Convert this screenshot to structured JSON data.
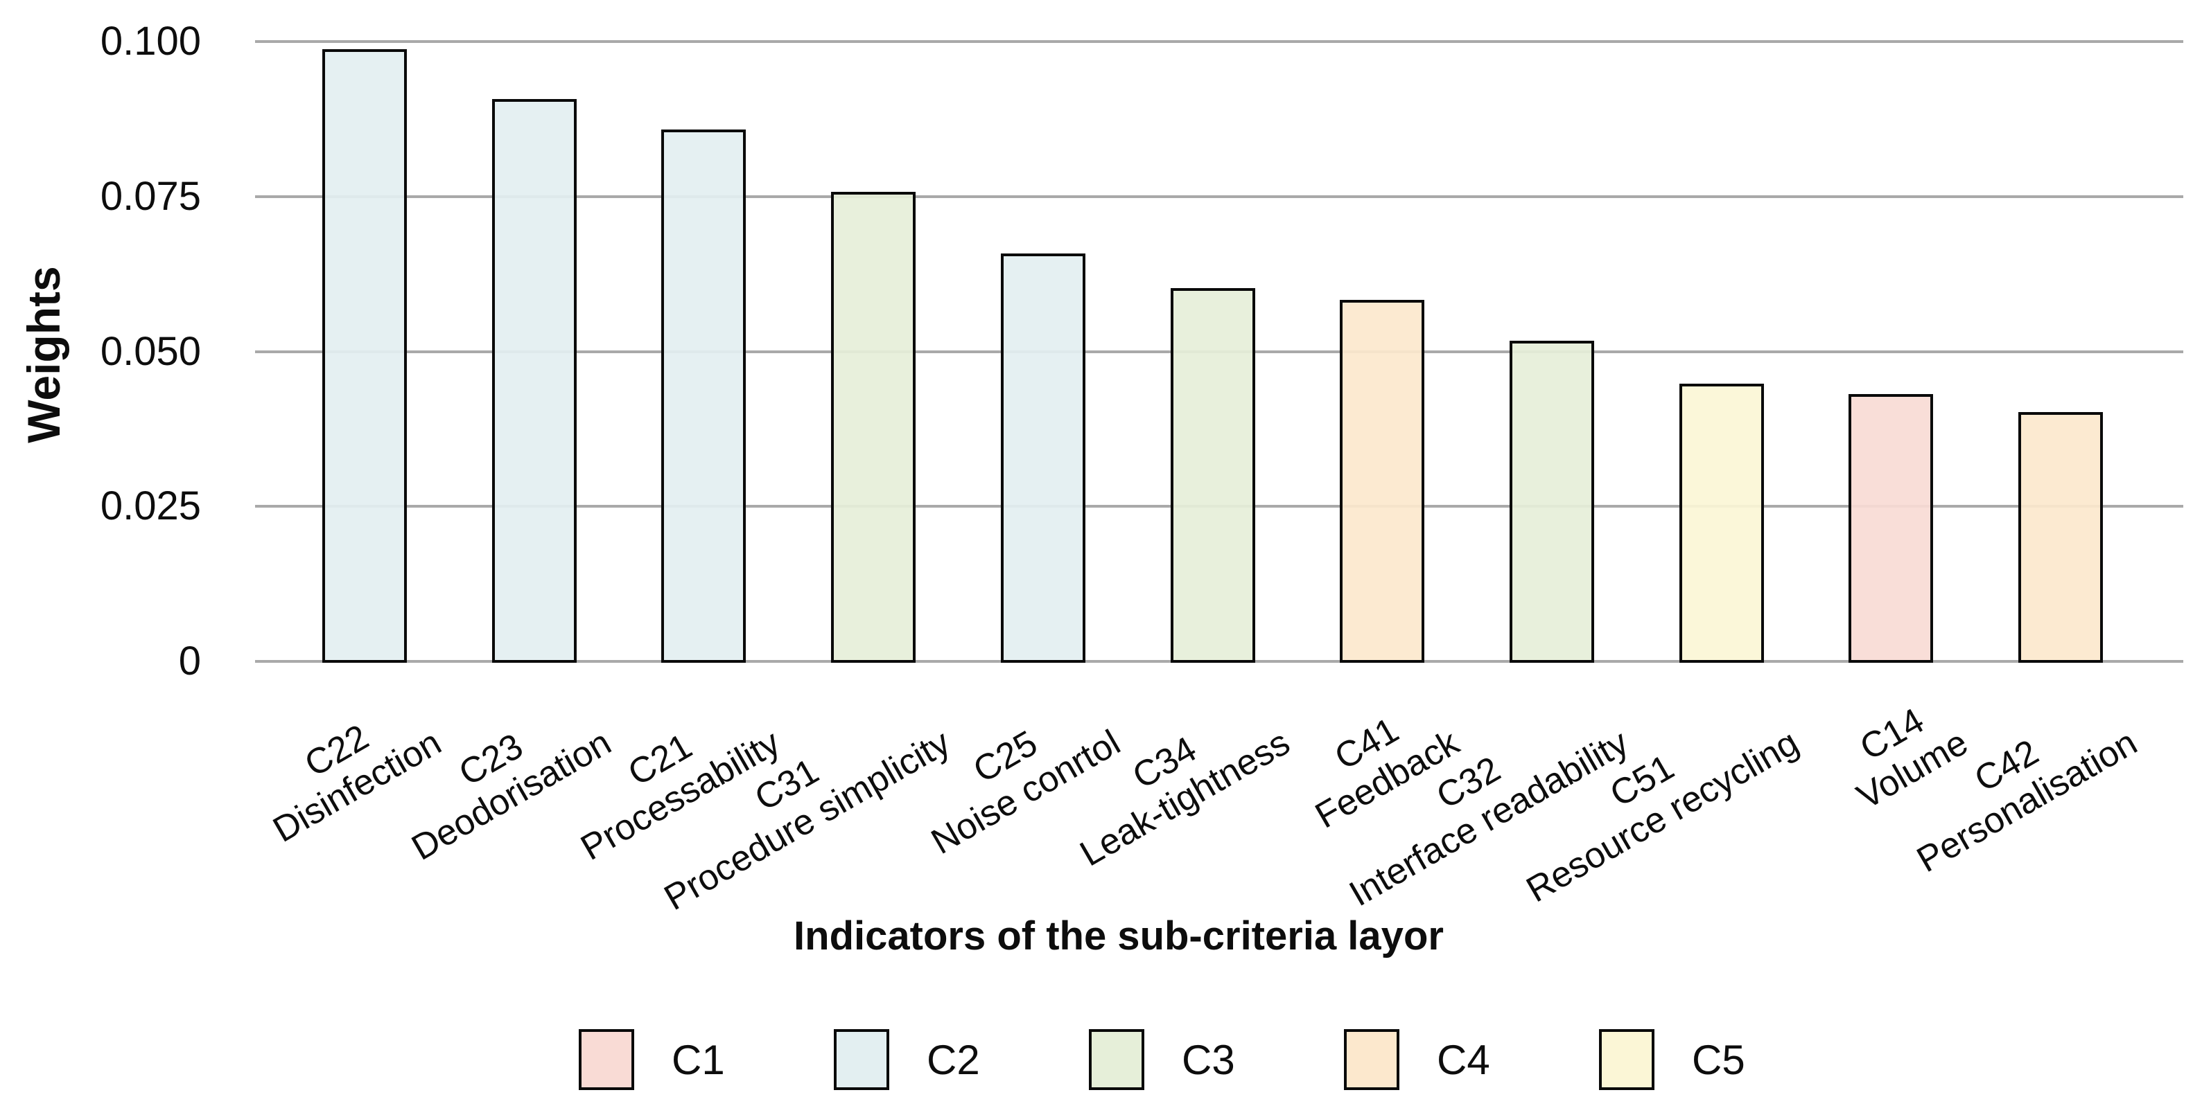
{
  "y_axis": {
    "title": "Weights",
    "ticks": [
      {
        "label": "0.100",
        "value": 0.1
      },
      {
        "label": "0.075",
        "value": 0.075
      },
      {
        "label": "0.050",
        "value": 0.05
      },
      {
        "label": "0.025",
        "value": 0.025
      },
      {
        "label": "0",
        "value": 0
      }
    ]
  },
  "x_axis": {
    "title": "Indicators of the sub-criteria layor"
  },
  "legend": [
    {
      "label": "C1",
      "color": "#f9dbd5"
    },
    {
      "label": "C2",
      "color": "#e3eff1"
    },
    {
      "label": "C3",
      "color": "#e6efd9"
    },
    {
      "label": "C4",
      "color": "#fce8cd"
    },
    {
      "label": "C5",
      "color": "#fbf6d6"
    }
  ],
  "chart_data": {
    "type": "bar",
    "title": "",
    "xlabel": "Indicators of the sub-criteria layor",
    "ylabel": "Weights",
    "ylim": [
      0,
      0.1
    ],
    "yticks": [
      0,
      0.025,
      0.05,
      0.075,
      0.1
    ],
    "grid": true,
    "legend_position": "bottom",
    "group_colors": {
      "C1": "#f9dbd5",
      "C2": "#e3eff1",
      "C3": "#e6efd9",
      "C4": "#fce8cd",
      "C5": "#fbf6d6"
    },
    "bars": [
      {
        "code": "C22",
        "name": "Disinfection",
        "value": 0.099,
        "group": "C2"
      },
      {
        "code": "C23",
        "name": "Deodorisation",
        "value": 0.091,
        "group": "C2"
      },
      {
        "code": "C21",
        "name": "Processability",
        "value": 0.086,
        "group": "C2"
      },
      {
        "code": "C31",
        "name": "Procedure simplicity",
        "value": 0.076,
        "group": "C3"
      },
      {
        "code": "C25",
        "name": "Noise conrtol",
        "value": 0.066,
        "group": "C2"
      },
      {
        "code": "C34",
        "name": "Leak-tightness",
        "value": 0.0605,
        "group": "C3"
      },
      {
        "code": "C41",
        "name": "Feedback",
        "value": 0.0585,
        "group": "C4"
      },
      {
        "code": "C32",
        "name": "Interface readability",
        "value": 0.052,
        "group": "C3"
      },
      {
        "code": "C51",
        "name": "Resource recycling",
        "value": 0.045,
        "group": "C5"
      },
      {
        "code": "C14",
        "name": "Volume",
        "value": 0.0433,
        "group": "C1"
      },
      {
        "code": "C42",
        "name": "Personalisation",
        "value": 0.0405,
        "group": "C4"
      }
    ]
  }
}
